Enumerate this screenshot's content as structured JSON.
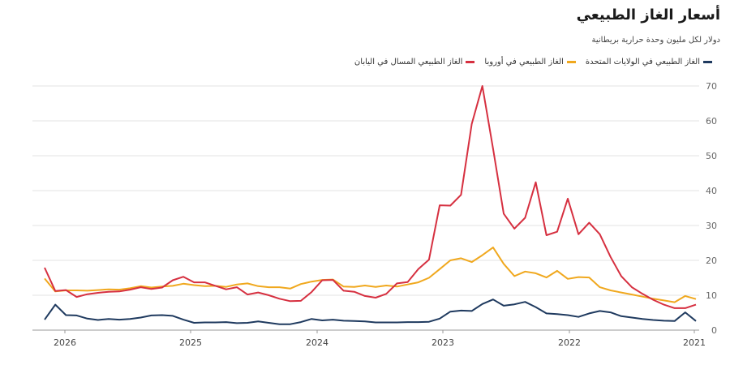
{
  "chart_data": {
    "type": "line",
    "title": "أسعار الغاز الطبيعي",
    "subtitle": "دولار لكل مليون وحدة حرارية بريطانية",
    "xlabel": "",
    "ylabel": "",
    "ylim": [
      0,
      70
    ],
    "y_ticks": [
      0,
      10,
      20,
      30,
      40,
      50,
      60,
      70
    ],
    "x_tick_labels": [
      "2021",
      "2022",
      "2023",
      "2024",
      "2025",
      "2026"
    ],
    "x_axis_direction": "reversed",
    "grid": true,
    "legend_position": "top-right",
    "x_start": "2021-01",
    "months": 62,
    "series": [
      {
        "name": "الغاز الطبيعي في الولايات المتحدة",
        "color": "#1f3a5f",
        "values": [
          2.6,
          5.1,
          2.6,
          2.7,
          2.9,
          3.2,
          3.6,
          4.0,
          5.1,
          5.5,
          4.8,
          3.8,
          4.3,
          4.6,
          4.8,
          6.6,
          8.1,
          7.4,
          7.0,
          8.8,
          7.5,
          5.5,
          5.6,
          5.3,
          3.3,
          2.4,
          2.3,
          2.3,
          2.2,
          2.2,
          2.2,
          2.5,
          2.6,
          2.7,
          3.0,
          2.8,
          3.2,
          2.3,
          1.7,
          1.7,
          2.1,
          2.5,
          2.1,
          2.0,
          2.3,
          2.2,
          2.2,
          2.1,
          3.0,
          4.1,
          4.3,
          4.2,
          3.6,
          3.2,
          3.0,
          3.2,
          2.9,
          3.3,
          4.2,
          4.3,
          7.3,
          3.0
        ]
      },
      {
        "name": "الغاز الطبيعي في أوروبا",
        "color": "#f0a81e",
        "values": [
          8.9,
          9.8,
          8.0,
          8.5,
          9.0,
          9.6,
          10.2,
          10.8,
          11.4,
          12.3,
          15.1,
          15.2,
          14.7,
          17.0,
          15.1,
          16.3,
          16.8,
          15.5,
          19.0,
          23.7,
          21.5,
          19.5,
          20.6,
          20.0,
          17.5,
          15.0,
          13.7,
          13.1,
          12.5,
          12.8,
          12.4,
          12.8,
          12.4,
          12.5,
          14.5,
          14.4,
          13.9,
          13.2,
          11.9,
          12.3,
          12.3,
          12.6,
          13.4,
          13.1,
          12.4,
          12.7,
          12.6,
          12.9,
          13.3,
          12.7,
          12.5,
          12.2,
          12.6,
          12.0,
          11.6,
          11.7,
          11.5,
          11.3,
          11.4,
          11.4,
          11.1,
          14.8
        ]
      },
      {
        "name": "الغاز الطبيعي المسال في اليابان",
        "color": "#d63040",
        "values": [
          7.3,
          6.3,
          6.3,
          7.3,
          8.7,
          10.4,
          12.3,
          15.5,
          21.0,
          27.5,
          30.8,
          27.5,
          37.7,
          28.2,
          27.2,
          42.4,
          32.2,
          29.1,
          33.4,
          52.0,
          70.0,
          59.1,
          38.8,
          35.7,
          35.8,
          20.2,
          17.5,
          13.8,
          13.4,
          10.4,
          9.3,
          9.8,
          11.0,
          11.3,
          14.4,
          14.3,
          10.9,
          8.4,
          8.3,
          9.0,
          10.0,
          10.8,
          10.2,
          12.3,
          11.7,
          12.7,
          13.7,
          13.7,
          15.3,
          14.3,
          12.2,
          11.8,
          12.3,
          11.6,
          11.1,
          11.0,
          10.7,
          10.3,
          9.5,
          11.5,
          11.2,
          17.9
        ]
      }
    ]
  },
  "footer": {
    "note": ""
  }
}
